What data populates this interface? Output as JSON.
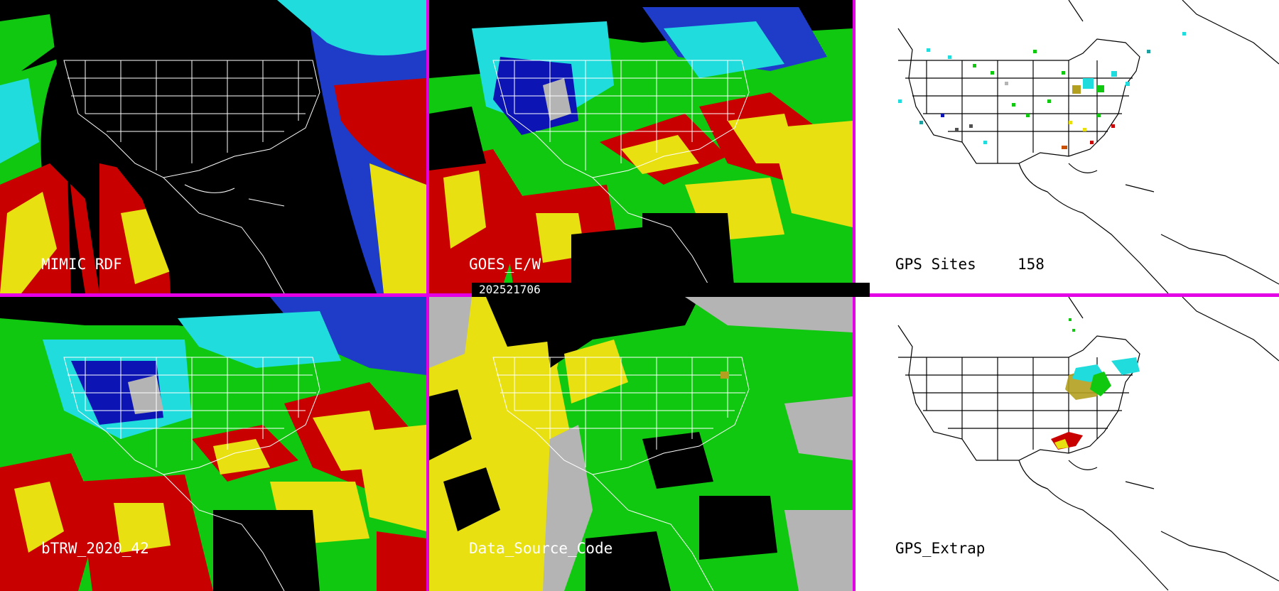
{
  "panels": {
    "mimic": {
      "label": "MIMIC RDF"
    },
    "goes": {
      "label": "GOES_E/W"
    },
    "gps_sites": {
      "label": "GPS Sites",
      "count": "158"
    },
    "btrw": {
      "label": "bTRW_2020_42"
    },
    "data_source": {
      "label": "Data_Source_Code"
    },
    "gps_extrap": {
      "label": "GPS_Extrap"
    }
  },
  "timestamp": "202521706",
  "colors": {
    "separator": "#e400e4",
    "dry": "#0c14b4",
    "cyan": "#20dcdc",
    "green": "#10c810",
    "yellow": "#e8e010",
    "red": "#c80000",
    "grey": "#b4b4b4"
  }
}
